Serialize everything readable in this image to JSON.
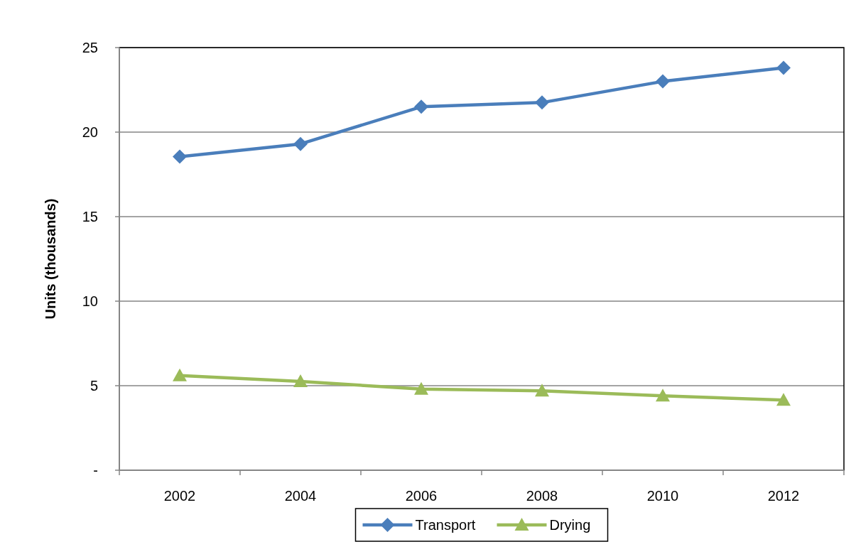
{
  "chart_data": {
    "type": "line",
    "ylabel": "Units (thousands)",
    "categories": [
      "2002",
      "2004",
      "2006",
      "2008",
      "2010",
      "2012"
    ],
    "series": [
      {
        "name": "Transport",
        "color": "#4a7ebb",
        "marker": "diamond",
        "values": [
          18.55,
          19.3,
          21.5,
          21.75,
          23.0,
          23.8
        ]
      },
      {
        "name": "Drying",
        "color": "#9bbb59",
        "marker": "triangle",
        "values": [
          5.6,
          5.25,
          4.8,
          4.7,
          4.4,
          4.15
        ]
      }
    ],
    "ylim": [
      0,
      25
    ],
    "yticks": [
      {
        "value": 0,
        "label": "-"
      },
      5,
      10,
      15,
      20,
      25
    ],
    "grid": "y",
    "legend": "bottom",
    "line_style": "solid"
  }
}
